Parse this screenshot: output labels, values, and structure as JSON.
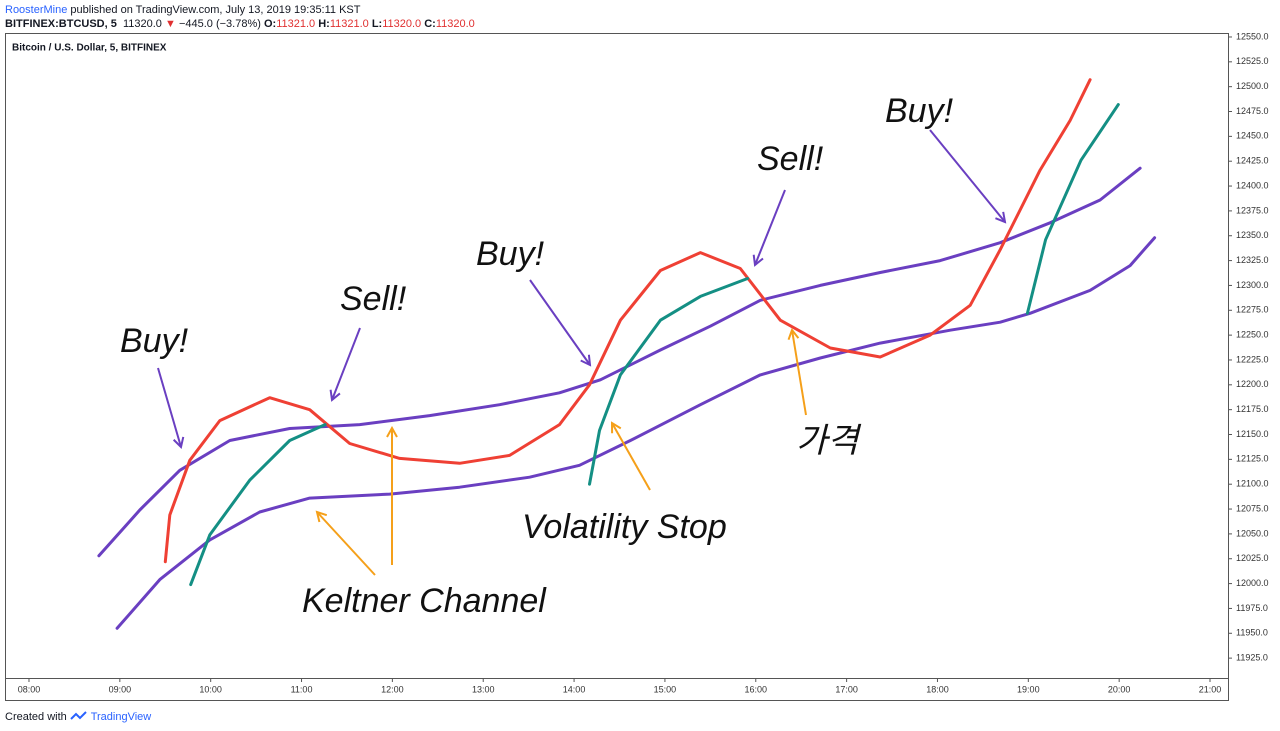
{
  "header": {
    "author": "RoosterMine",
    "published": "published on TradingView.com, July 13, 2019 19:35:11 KST",
    "symbol": "BITFINEX:BTCUSD, 5",
    "price": "11320.0",
    "arrow": "▼",
    "change": "−445.0 (−3.78%)",
    "ohlc": [
      "O:",
      "11321.0",
      "H:",
      "11321.0",
      "L:",
      "11320.0",
      "C:",
      "11320.0"
    ]
  },
  "footer": {
    "created": "Created with",
    "brand": "TradingView"
  },
  "chart_data": {
    "type": "line",
    "title": "Bitcoin / U.S. Dollar, 5, BITFINEX",
    "annotations": [
      "Buy!",
      "Sell!",
      "Buy!",
      "Sell!",
      "Buy!",
      "Keltner Channel",
      "Volatility Stop",
      "가격"
    ],
    "xlim": [
      7.736,
      21.198
    ],
    "ylim": [
      11905,
      12554
    ],
    "xticks": [
      {
        "value": 8,
        "label": "08:00"
      },
      {
        "value": 9,
        "label": "09:00"
      },
      {
        "value": 10,
        "label": "10:00"
      },
      {
        "value": 11,
        "label": "11:00"
      },
      {
        "value": 12,
        "label": "12:00"
      },
      {
        "value": 13,
        "label": "13:00"
      },
      {
        "value": 14,
        "label": "14:00"
      },
      {
        "value": 15,
        "label": "15:00"
      },
      {
        "value": 16,
        "label": "16:00"
      },
      {
        "value": 17,
        "label": "17:00"
      },
      {
        "value": 18,
        "label": "18:00"
      },
      {
        "value": 19,
        "label": "19:00"
      },
      {
        "value": 20,
        "label": "20:00"
      },
      {
        "value": 21,
        "label": "21:00"
      }
    ],
    "yticks": [
      {
        "value": 11925,
        "label": "11925.0"
      },
      {
        "value": 11950,
        "label": "11950.0"
      },
      {
        "value": 11975,
        "label": "11975.0"
      },
      {
        "value": 12000,
        "label": "12000.0"
      },
      {
        "value": 12025,
        "label": "12025.0"
      },
      {
        "value": 12050,
        "label": "12050.0"
      },
      {
        "value": 12075,
        "label": "12075.0"
      },
      {
        "value": 12100,
        "label": "12100.0"
      },
      {
        "value": 12125,
        "label": "12125.0"
      },
      {
        "value": 12150,
        "label": "12150.0"
      },
      {
        "value": 12175,
        "label": "12175.0"
      },
      {
        "value": 12200,
        "label": "12200.0"
      },
      {
        "value": 12225,
        "label": "12225.0"
      },
      {
        "value": 12250,
        "label": "12250.0"
      },
      {
        "value": 12275,
        "label": "12275.0"
      },
      {
        "value": 12300,
        "label": "12300.0"
      },
      {
        "value": 12325,
        "label": "12325.0"
      },
      {
        "value": 12350,
        "label": "12350.0"
      },
      {
        "value": 12375,
        "label": "12375.0"
      },
      {
        "value": 12400,
        "label": "12400.0"
      },
      {
        "value": 12425,
        "label": "12425.0"
      },
      {
        "value": 12450,
        "label": "12450.0"
      },
      {
        "value": 12475,
        "label": "12475.0"
      },
      {
        "value": 12500,
        "label": "12500.0"
      },
      {
        "value": 12525,
        "label": "12525.0"
      },
      {
        "value": 12550,
        "label": "12550.0"
      }
    ],
    "series": [
      {
        "color": "#6a3fc1",
        "x": [
          8.77,
          9.22,
          9.66,
          10.21,
          10.87,
          11.64,
          12.41,
          13.18,
          13.84,
          14.29,
          14.95,
          15.5,
          16.05,
          16.71,
          17.37,
          18.03,
          18.69,
          19.24,
          19.79,
          20.23
        ],
        "values": [
          12028,
          12074,
          12114,
          12144,
          12156,
          12160,
          12169,
          12180,
          12192,
          12205,
          12235,
          12259,
          12285,
          12300,
          12313,
          12325,
          12343,
          12363,
          12386,
          12418
        ]
      },
      {
        "color": "#6a3fc1",
        "x": [
          8.97,
          9.44,
          9.99,
          10.54,
          11.09,
          11.97,
          12.74,
          13.51,
          14.06,
          14.62,
          15.39,
          16.05,
          16.71,
          17.37,
          18.14,
          18.69,
          19.02,
          19.68,
          20.12,
          20.39
        ],
        "values": [
          11955,
          12004,
          12044,
          12072,
          12086,
          12090,
          12097,
          12107,
          12119,
          12144,
          12180,
          12210,
          12227,
          12242,
          12255,
          12263,
          12272,
          12295,
          12320,
          12348
        ]
      },
      {
        "color": "#ef4034",
        "x": [
          9.5,
          9.55,
          9.77,
          10.1,
          10.65,
          11.09,
          11.53,
          12.08,
          12.74,
          13.29,
          13.84,
          14.17,
          14.51,
          14.95,
          15.39,
          15.83,
          16.27,
          16.82,
          17.37,
          17.92,
          18.36,
          18.69,
          19.13,
          19.46,
          19.68
        ],
        "values": [
          12022,
          12069,
          12124,
          12164,
          12187,
          12175,
          12141,
          12126,
          12121,
          12129,
          12160,
          12200,
          12265,
          12315,
          12333,
          12317,
          12265,
          12237,
          12228,
          12250,
          12280,
          12336,
          12416,
          12466,
          12507
        ]
      },
      {
        "color": "#148f84",
        "x": [
          9.78,
          9.99,
          10.43,
          10.87,
          11.26
        ],
        "values": [
          11999,
          12049,
          12104,
          12144,
          12160
        ]
      },
      {
        "color": "#148f84",
        "x": [
          14.17,
          14.28,
          14.51,
          14.95,
          15.39,
          15.91
        ],
        "values": [
          12100,
          12154,
          12210,
          12265,
          12289,
          12307
        ]
      },
      {
        "color": "#148f84",
        "x": [
          18.99,
          19.19,
          19.58,
          19.99
        ],
        "values": [
          12272,
          12346,
          12426,
          12482
        ]
      }
    ]
  }
}
